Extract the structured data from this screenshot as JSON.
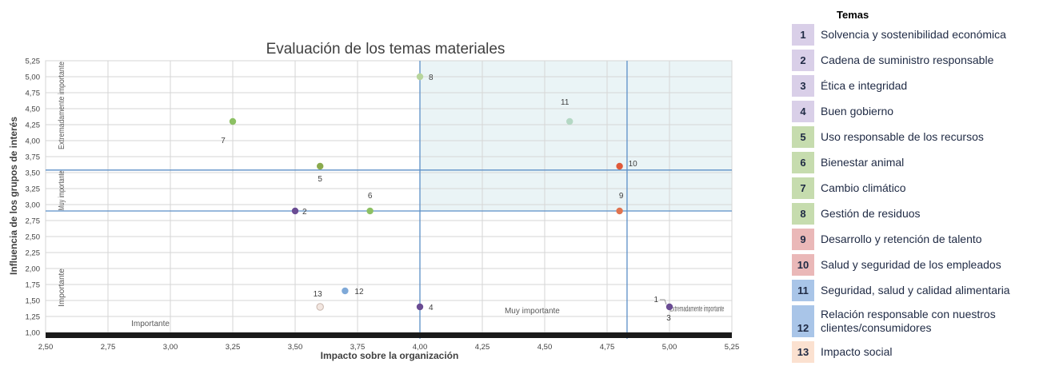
{
  "legend": {
    "title": "Temas",
    "items": [
      {
        "num": "1",
        "text": "Solvencia y sostenibilidad económica",
        "color": "#d9cfe8"
      },
      {
        "num": "2",
        "text": "Cadena de suministro responsable",
        "color": "#d9cfe8"
      },
      {
        "num": "3",
        "text": "Ética e integridad",
        "color": "#d9cfe8"
      },
      {
        "num": "4",
        "text": "Buen gobierno",
        "color": "#d9cfe8"
      },
      {
        "num": "5",
        "text": "Uso responsable de los recursos",
        "color": "#c6dcae"
      },
      {
        "num": "6",
        "text": "Bienestar animal",
        "color": "#c6dcae"
      },
      {
        "num": "7",
        "text": "Cambio climático",
        "color": "#c6dcae"
      },
      {
        "num": "8",
        "text": "Gestión de residuos",
        "color": "#c6dcae"
      },
      {
        "num": "9",
        "text": "Desarrollo y retención de talento",
        "color": "#eab8b8"
      },
      {
        "num": "10",
        "text": "Salud y seguridad de los empleados",
        "color": "#eab8b8"
      },
      {
        "num": "11",
        "text": "Seguridad, salud y calidad alimentaria",
        "color": "#a9c5e8"
      },
      {
        "num": "12",
        "text": "Relación responsable con nuestros clientes/consumidores",
        "color": "#a9c5e8"
      },
      {
        "num": "13",
        "text": "Impacto social",
        "color": "#fbe1d0"
      }
    ]
  },
  "chart_data": {
    "type": "scatter",
    "title": "Evaluación de los temas materiales",
    "xlabel": "Impacto sobre la organización",
    "ylabel": "Influencia de los grupos de interés",
    "xlim": [
      2.5,
      5.25
    ],
    "ylim": [
      1.0,
      5.25
    ],
    "x_ticks": [
      "2,50",
      "2,75",
      "3,00",
      "3,25",
      "3,50",
      "3,75",
      "4,00",
      "4,25",
      "4,50",
      "4,75",
      "5,00",
      "5,25"
    ],
    "y_ticks": [
      "1,00",
      "1,25",
      "1,50",
      "1,75",
      "2,00",
      "2,25",
      "2,50",
      "2,75",
      "3,00",
      "3,25",
      "3,50",
      "3,75",
      "4,00",
      "4,25",
      "4,50",
      "4,75",
      "5,00",
      "5,25"
    ],
    "grid": true,
    "thresholds": {
      "x": [
        4.0,
        4.83
      ],
      "y": [
        2.9,
        3.54
      ]
    },
    "highlight_region": {
      "x": [
        4.0,
        5.25
      ],
      "y": [
        2.9,
        5.25
      ],
      "color": "#eaf4f6"
    },
    "zone_labels_x": [
      "Importante",
      "Muy importante",
      "Extremadamente importante"
    ],
    "zone_labels_y": [
      "Importante",
      "Muy importante",
      "Extremadamente importante"
    ],
    "points": [
      {
        "id": "1",
        "x": 5.0,
        "y": 1.4,
        "color": "#6a4c93"
      },
      {
        "id": "2",
        "x": 3.5,
        "y": 2.9,
        "color": "#6a4c93"
      },
      {
        "id": "3",
        "x": 5.0,
        "y": 1.4,
        "color": "#6a4c93"
      },
      {
        "id": "4",
        "x": 4.0,
        "y": 1.4,
        "color": "#6a4c93"
      },
      {
        "id": "5",
        "x": 3.6,
        "y": 3.6,
        "color": "#8aaa4e"
      },
      {
        "id": "6",
        "x": 3.8,
        "y": 2.9,
        "color": "#8cc063"
      },
      {
        "id": "7",
        "x": 3.25,
        "y": 4.3,
        "color": "#8cc063"
      },
      {
        "id": "8",
        "x": 4.0,
        "y": 5.0,
        "color": "#b7d59c"
      },
      {
        "id": "9",
        "x": 4.8,
        "y": 2.9,
        "color": "#e0734f"
      },
      {
        "id": "10",
        "x": 4.8,
        "y": 3.6,
        "color": "#e05a3a"
      },
      {
        "id": "11",
        "x": 4.6,
        "y": 4.3,
        "color": "#b4d8c4"
      },
      {
        "id": "12",
        "x": 3.7,
        "y": 1.65,
        "color": "#7fa9d8"
      },
      {
        "id": "13",
        "x": 3.6,
        "y": 1.4,
        "color": "#f2e6e0"
      }
    ]
  }
}
